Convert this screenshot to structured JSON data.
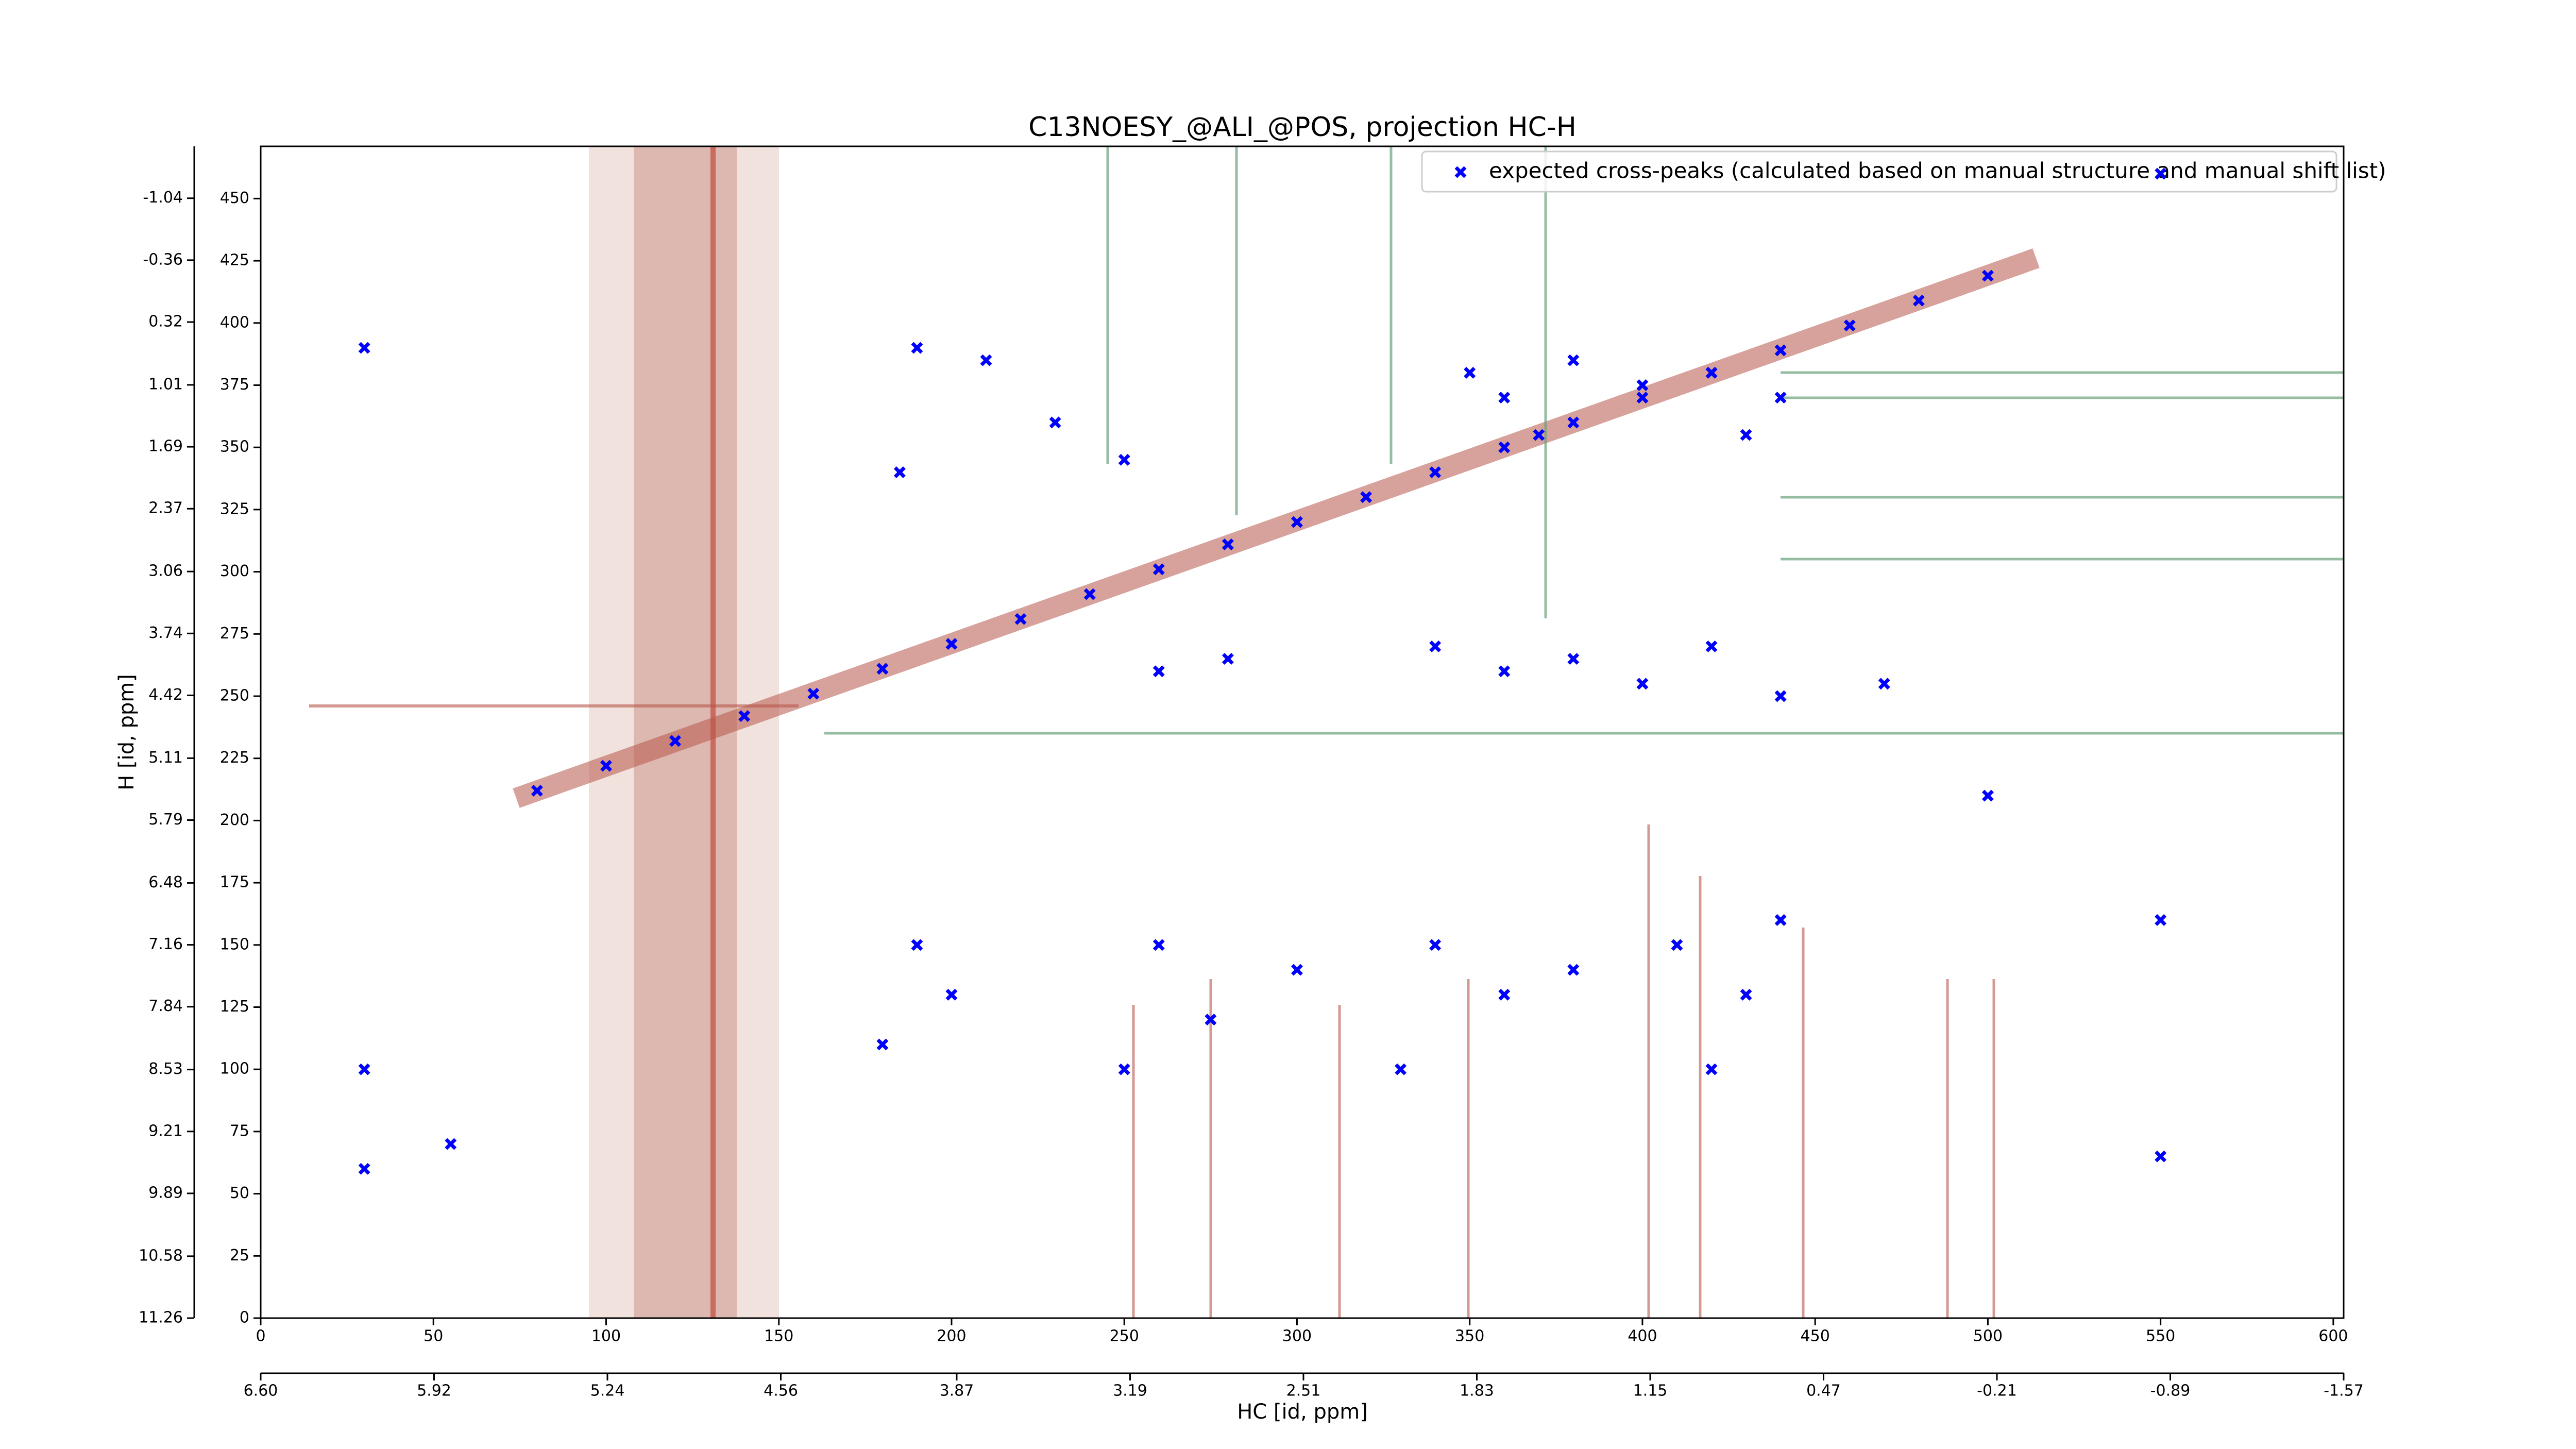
{
  "chart_data": {
    "type": "scatter",
    "title": "C13NOESY_@ALI_@POS, projection HC-H",
    "x_label": "HC [id, ppm]",
    "y_label": "H [id, ppm]",
    "xlim": [
      0,
      603
    ],
    "ylim": [
      0,
      471
    ],
    "xticks": [
      0,
      50,
      100,
      150,
      200,
      250,
      300,
      350,
      400,
      450,
      500,
      550,
      600
    ],
    "yticks": [
      0,
      25,
      50,
      75,
      100,
      125,
      150,
      175,
      200,
      225,
      250,
      275,
      300,
      325,
      350,
      375,
      400,
      425,
      450
    ],
    "x2lim": [
      6.6,
      -1.57
    ],
    "x2ticks": [
      {
        "value": 6.6,
        "label": "6.60"
      },
      5.92,
      5.24,
      4.56,
      3.87,
      3.19,
      2.51,
      1.83,
      1.15,
      0.47,
      -0.21,
      -0.89,
      -1.57
    ],
    "y2lim": [
      11.26,
      -1.61
    ],
    "y2ticks": [
      11.26,
      10.58,
      9.89,
      9.21,
      8.53,
      7.84,
      7.16,
      6.48,
      5.79,
      5.11,
      4.42,
      3.74,
      3.06,
      2.37,
      1.69,
      1.01,
      0.32,
      -0.36,
      -1.04
    ],
    "legend": "upper right",
    "series": [
      {
        "name": "expected cross-peaks (calculated based on manual structure and manual shift list)",
        "color": "#0000ff",
        "x": [
          80,
          100,
          120,
          140,
          160,
          180,
          200,
          220,
          240,
          260,
          280,
          300,
          320,
          340,
          360,
          380,
          400,
          420,
          440,
          460,
          480,
          500,
          190,
          210,
          230,
          250,
          185,
          350,
          360,
          380,
          400,
          420,
          440,
          430,
          370,
          340,
          360,
          380,
          400,
          420,
          440,
          260,
          280,
          190,
          200,
          180,
          260,
          275,
          300,
          340,
          360,
          380,
          410,
          430,
          440,
          420,
          330,
          250,
          30,
          30,
          55,
          550,
          550,
          550,
          30,
          470,
          500
        ],
        "values": [
          212,
          222,
          232,
          242,
          251,
          261,
          271,
          281,
          291,
          301,
          311,
          320,
          330,
          340,
          350,
          360,
          370,
          380,
          389,
          399,
          409,
          419,
          390,
          385,
          360,
          345,
          340,
          380,
          370,
          385,
          375,
          380,
          370,
          355,
          355,
          270,
          260,
          265,
          255,
          270,
          250,
          260,
          265,
          150,
          130,
          110,
          150,
          120,
          140,
          150,
          130,
          140,
          150,
          130,
          160,
          100,
          100,
          100,
          100,
          60,
          70,
          160,
          65,
          460,
          390,
          255,
          210
        ]
      }
    ]
  }
}
